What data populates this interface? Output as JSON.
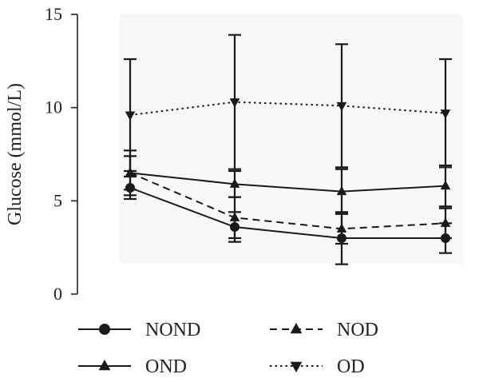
{
  "chart_data": {
    "type": "line",
    "title": "",
    "xlabel": "",
    "ylabel": "Glucose (mmol/L)",
    "ylim": [
      0,
      15
    ],
    "yticks": [
      "0",
      "5",
      "10",
      "15"
    ],
    "x": [
      1,
      2,
      3,
      4
    ],
    "grid": false,
    "legend_position": "bottom",
    "series": [
      {
        "name": "NOND",
        "marker": "circle",
        "line_style": "solid",
        "color": "#1a1a1a",
        "values": [
          5.7,
          3.6,
          3.0,
          3.0
        ],
        "error": [
          0.6,
          0.8,
          1.4,
          0.8
        ]
      },
      {
        "name": "NOD",
        "marker": "triangle-up",
        "line_style": "dashed",
        "color": "#1a1a1a",
        "values": [
          6.5,
          4.1,
          3.5,
          3.8
        ],
        "error": [
          1.2,
          1.1,
          0.8,
          0.8
        ]
      },
      {
        "name": "OND",
        "marker": "triangle-up",
        "line_style": "solid",
        "color": "#1a1a1a",
        "values": [
          6.5,
          5.9,
          5.5,
          5.8
        ],
        "error": [
          0.9,
          0.7,
          1.2,
          1.1
        ]
      },
      {
        "name": "OD",
        "marker": "triangle-down",
        "line_style": "dotted",
        "color": "#1a1a1a",
        "values": [
          9.6,
          10.3,
          10.1,
          9.7
        ],
        "error": [
          3.0,
          3.6,
          3.3,
          2.9
        ]
      }
    ]
  }
}
